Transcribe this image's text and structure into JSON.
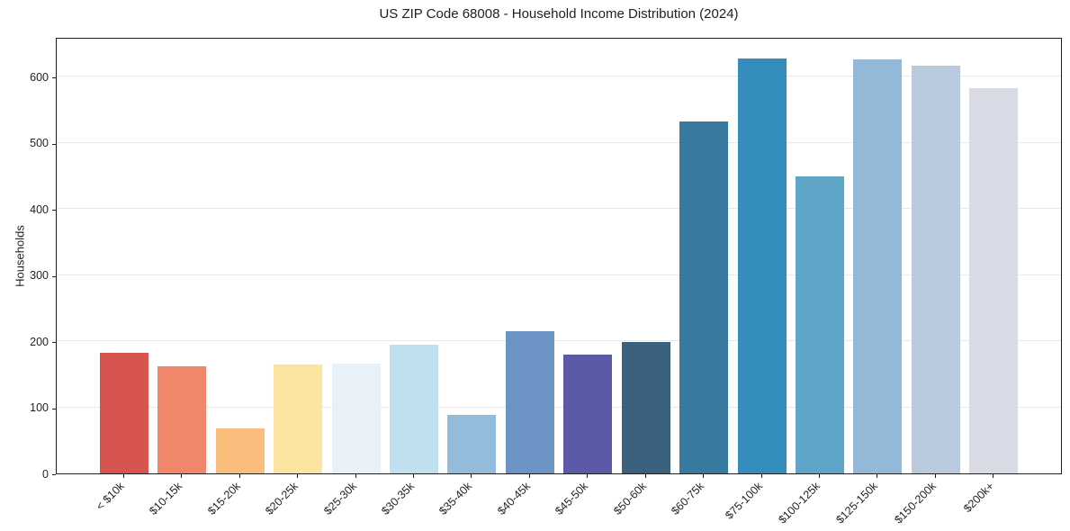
{
  "title": "US ZIP Code 68008 - Household Income Distribution (2024)",
  "chart_data": {
    "type": "bar",
    "title": "US ZIP Code 68008 - Household Income Distribution (2024)",
    "xlabel": "",
    "ylabel": "Households",
    "ylim": [
      0,
      660
    ],
    "yticks": [
      0,
      100,
      200,
      300,
      400,
      500,
      600
    ],
    "grid": "horizontal",
    "legend": "none",
    "categories": [
      "< $10k",
      "$10-15k",
      "$15-20k",
      "$20-25k",
      "$25-30k",
      "$30-35k",
      "$35-40k",
      "$40-45k",
      "$45-50k",
      "$50-60k",
      "$60-75k",
      "$75-100k",
      "$100-125k",
      "$125-150k",
      "$150-200k",
      "$200k+"
    ],
    "values": [
      182,
      162,
      68,
      164,
      166,
      194,
      88,
      215,
      180,
      198,
      532,
      627,
      449,
      626,
      617,
      583
    ],
    "bar_colors": [
      "#d6564f",
      "#f0876a",
      "#fbbd7c",
      "#fde4a1",
      "#e7f1f7",
      "#bfe0ee",
      "#93bcdc",
      "#6b93c4",
      "#5a5aa9",
      "#3a627e",
      "#38799f",
      "#348dbd",
      "#5ea5c7",
      "#93b9d9",
      "#b9c9de",
      "#d8dae6"
    ]
  },
  "colors": {
    "background": "#ffffff",
    "axis": "#1f1f1f",
    "grid": "#e7e7e7",
    "text": "#1f1f1f"
  }
}
